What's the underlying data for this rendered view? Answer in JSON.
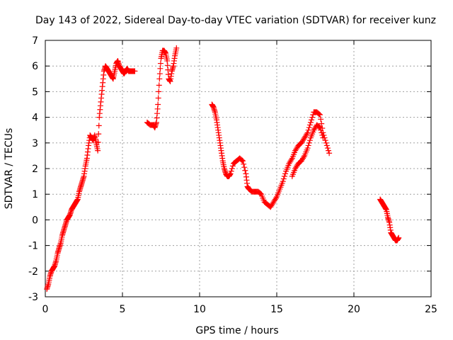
{
  "chart_data": {
    "type": "scatter",
    "title": "Day 143 of 2022, Sidereal Day-to-day VTEC variation (SDTVAR) for receiver kunz",
    "xlabel": "GPS time / hours",
    "ylabel": "SDTVAR / TECUs",
    "xlim": [
      0,
      25
    ],
    "ylim": [
      -3,
      7
    ],
    "xticks": [
      0,
      5,
      10,
      15,
      20,
      25
    ],
    "yticks": [
      -3,
      -2,
      -1,
      0,
      1,
      2,
      3,
      4,
      5,
      6,
      7
    ],
    "grid": true,
    "marker": "plus",
    "color": "#ff0000",
    "segments": [
      {
        "x": [
          0.1,
          0.2,
          0.3,
          0.4,
          0.5,
          0.6,
          0.7,
          0.8,
          0.9,
          1.0,
          1.1,
          1.2,
          1.3,
          1.4,
          1.5,
          1.6,
          1.7,
          1.8,
          1.9,
          2.0,
          2.1,
          2.2,
          2.3,
          2.4,
          2.5,
          2.6,
          2.7,
          2.8,
          2.9,
          3.0,
          3.1,
          3.2,
          3.3,
          3.4,
          3.5,
          3.6,
          3.7,
          3.8,
          3.9,
          4.0,
          4.1,
          4.2,
          4.3,
          4.4,
          4.5,
          4.6,
          4.7,
          4.8,
          4.9,
          5.0,
          5.1,
          5.2,
          5.3,
          5.4,
          5.5,
          5.6,
          5.7,
          5.8
        ],
        "y": [
          -2.7,
          -2.5,
          -2.2,
          -2.0,
          -1.9,
          -1.8,
          -1.6,
          -1.3,
          -1.1,
          -0.9,
          -0.6,
          -0.4,
          -0.2,
          0.0,
          0.1,
          0.2,
          0.4,
          0.5,
          0.6,
          0.7,
          0.8,
          1.1,
          1.3,
          1.5,
          1.7,
          2.1,
          2.4,
          2.9,
          3.3,
          3.2,
          3.1,
          3.3,
          3.0,
          2.7,
          4.0,
          4.6,
          5.2,
          5.8,
          6.0,
          5.9,
          5.8,
          5.7,
          5.6,
          5.5,
          5.8,
          6.1,
          6.2,
          6.0,
          5.9,
          5.8,
          5.7,
          5.8,
          5.9,
          5.8,
          5.8,
          5.8,
          5.8,
          5.8
        ]
      },
      {
        "x": [
          6.6,
          6.8,
          7.0,
          7.1,
          7.2,
          7.3,
          7.4,
          7.5,
          7.6,
          7.7,
          7.8,
          7.9,
          8.0,
          8.1,
          8.2,
          8.3,
          8.4,
          8.5
        ],
        "y": [
          3.8,
          3.7,
          3.7,
          3.6,
          3.8,
          4.5,
          5.5,
          6.3,
          6.6,
          6.6,
          6.5,
          6.2,
          5.5,
          5.4,
          5.8,
          6.0,
          6.4,
          6.7
        ]
      },
      {
        "x": [
          10.8,
          10.9,
          11.0,
          11.1,
          11.2,
          11.3,
          11.4,
          11.5,
          11.6,
          11.7,
          11.8,
          11.9,
          12.0,
          12.2,
          12.4,
          12.6,
          12.8,
          13.0,
          13.1,
          13.2,
          13.4,
          13.6,
          13.8,
          14.0,
          14.2,
          14.4,
          14.6,
          14.8,
          15.0,
          15.2,
          15.4,
          15.6,
          15.8,
          16.0,
          16.2,
          16.4,
          16.6,
          16.8,
          17.0,
          17.2,
          17.4,
          17.6,
          17.8,
          18.0,
          18.2,
          18.4
        ],
        "y": [
          4.5,
          4.4,
          4.2,
          3.9,
          3.5,
          3.1,
          2.7,
          2.3,
          2.0,
          1.8,
          1.7,
          1.7,
          1.8,
          2.2,
          2.3,
          2.4,
          2.3,
          1.8,
          1.3,
          1.2,
          1.1,
          1.1,
          1.1,
          1.0,
          0.7,
          0.6,
          0.5,
          0.7,
          0.9,
          1.2,
          1.5,
          1.9,
          2.2,
          2.4,
          2.7,
          2.9,
          3.0,
          3.2,
          3.4,
          3.8,
          4.2,
          4.2,
          4.1,
          3.4,
          3.0,
          2.6
        ]
      },
      {
        "x": [
          16.0,
          16.2,
          16.4,
          16.6,
          16.8,
          17.0,
          17.2,
          17.4,
          17.6,
          17.8,
          18.0
        ],
        "y": [
          1.7,
          2.0,
          2.2,
          2.3,
          2.5,
          2.8,
          3.2,
          3.5,
          3.7,
          3.6,
          3.2
        ]
      },
      {
        "x": [
          21.7,
          21.8,
          21.9,
          22.0,
          22.1,
          22.2,
          22.3,
          22.4,
          22.5,
          22.6,
          22.7,
          22.8,
          22.9
        ],
        "y": [
          0.8,
          0.7,
          0.6,
          0.5,
          0.4,
          0.1,
          -0.1,
          -0.5,
          -0.6,
          -0.7,
          -0.8,
          -0.8,
          -0.7
        ]
      }
    ]
  }
}
